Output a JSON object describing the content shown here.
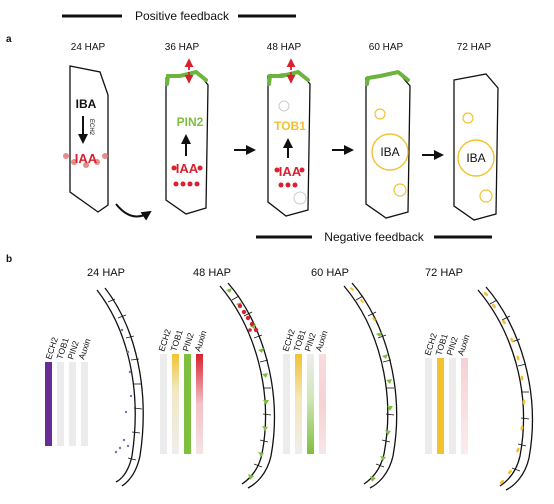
{
  "header": {
    "positive_feedback": "Positive feedback",
    "negative_feedback": "Negative feedback"
  },
  "panel_a": {
    "label": "a",
    "cells": [
      {
        "time": "24 HAP",
        "top": "IBA",
        "enzyme": "ECH2",
        "bottom": "IAA"
      },
      {
        "time": "36 HAP",
        "top": "PIN2",
        "bottom": "IAA"
      },
      {
        "time": "48 HAP",
        "top": "TOB1",
        "bottom": "IAA"
      },
      {
        "time": "60 HAP",
        "center": "IBA"
      },
      {
        "time": "72 HAP",
        "center": "IBA"
      }
    ]
  },
  "panel_b": {
    "label": "b",
    "columns": [
      "ECH2",
      "TOB1",
      "PIN2",
      "Auxin"
    ],
    "timepoints": [
      {
        "time": "24 HAP",
        "active": [
          "ECH2"
        ]
      },
      {
        "time": "48 HAP",
        "active": [
          "TOB1",
          "PIN2",
          "Auxin"
        ]
      },
      {
        "time": "60 HAP",
        "active": [
          "TOB1",
          "PIN2",
          "Auxin"
        ]
      },
      {
        "time": "72 HAP",
        "active": [
          "TOB1",
          "Auxin"
        ]
      }
    ]
  },
  "colors": {
    "ECH2": "#6a2d95",
    "TOB1": "#f2c230",
    "PIN2": "#7fbf3f",
    "Auxin": "#d8202f",
    "bar_gray": "#e9e9e9",
    "outline": "#111111"
  }
}
